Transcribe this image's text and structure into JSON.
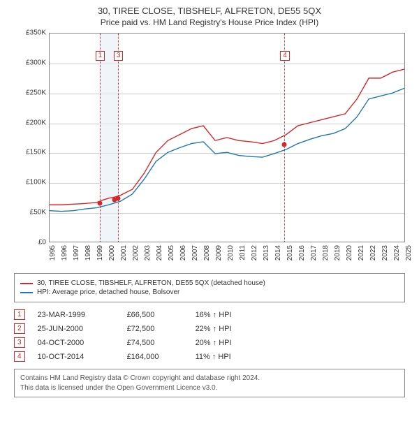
{
  "title": "30, TIREE CLOSE, TIBSHELF, ALFRETON, DE55 5QX",
  "subtitle": "Price paid vs. HM Land Registry's House Price Index (HPI)",
  "chart": {
    "type": "line",
    "background_color": "#ffffff",
    "grid_color": "#cccccc",
    "border_color": "#888888",
    "ylim": [
      0,
      350000
    ],
    "ytick_step": 50000,
    "y_ticks": [
      "£0",
      "£50K",
      "£100K",
      "£150K",
      "£200K",
      "£250K",
      "£300K",
      "£350K"
    ],
    "x_years": [
      1995,
      1996,
      1997,
      1998,
      1999,
      2000,
      2001,
      2002,
      2003,
      2004,
      2005,
      2006,
      2007,
      2008,
      2009,
      2010,
      2011,
      2012,
      2013,
      2014,
      2015,
      2016,
      2017,
      2018,
      2019,
      2020,
      2021,
      2022,
      2023,
      2024,
      2025
    ],
    "shaded_bands": [
      {
        "x_start": 1999.2,
        "x_end": 2000.8,
        "color": "#e6eef5"
      }
    ],
    "marker_lines": [
      {
        "x": 1999.22,
        "label": "1",
        "label_y": 25
      },
      {
        "x": 2000.76,
        "label": "3",
        "label_y": 25
      },
      {
        "x": 2014.78,
        "label": "4",
        "label_y": 25
      }
    ],
    "series": [
      {
        "name": "property",
        "label": "30, TIREE CLOSE, TIBSHELF, ALFRETON, DE55 5QX (detached house)",
        "color": "#d62728",
        "line_width": 1.4,
        "x": [
          1995,
          1996,
          1997,
          1998,
          1999,
          1999.5,
          2000,
          2000.5,
          2001,
          2002,
          2003,
          2004,
          2005,
          2006,
          2007,
          2008,
          2009,
          2010,
          2011,
          2012,
          2013,
          2014,
          2015,
          2016,
          2017,
          2018,
          2019,
          2020,
          2021,
          2022,
          2023,
          2024,
          2025
        ],
        "y": [
          62000,
          62000,
          63000,
          64000,
          66000,
          70000,
          73000,
          75000,
          78000,
          88000,
          115000,
          150000,
          170000,
          180000,
          190000,
          195000,
          170000,
          175000,
          170000,
          168000,
          165000,
          170000,
          180000,
          195000,
          200000,
          205000,
          210000,
          215000,
          240000,
          275000,
          275000,
          285000,
          290000
        ]
      },
      {
        "name": "hpi",
        "label": "HPI: Average price, detached house, Bolsover",
        "color": "#1f77b4",
        "line_width": 1.4,
        "x": [
          1995,
          1996,
          1997,
          1998,
          1999,
          2000,
          2001,
          2002,
          2003,
          2004,
          2005,
          2006,
          2007,
          2008,
          2009,
          2010,
          2011,
          2012,
          2013,
          2014,
          2015,
          2016,
          2017,
          2018,
          2019,
          2020,
          2021,
          2022,
          2023,
          2024,
          2025
        ],
        "y": [
          52000,
          51000,
          52000,
          55000,
          57000,
          62000,
          68000,
          80000,
          105000,
          135000,
          150000,
          158000,
          165000,
          168000,
          148000,
          150000,
          145000,
          143000,
          142000,
          148000,
          155000,
          165000,
          172000,
          178000,
          182000,
          190000,
          210000,
          240000,
          245000,
          250000,
          258000
        ]
      }
    ],
    "sale_markers": [
      {
        "num": "1",
        "x": 1999.22,
        "y": 66500
      },
      {
        "num": "2",
        "x": 2000.48,
        "y": 72500
      },
      {
        "num": "3",
        "x": 2000.76,
        "y": 74500
      },
      {
        "num": "4",
        "x": 2014.78,
        "y": 164000
      }
    ]
  },
  "legend": {
    "items": [
      {
        "color": "#d62728",
        "label": "30, TIREE CLOSE, TIBSHELF, ALFRETON, DE55 5QX (detached house)"
      },
      {
        "color": "#1f77b4",
        "label": "HPI: Average price, detached house, Bolsover"
      }
    ]
  },
  "sales": [
    {
      "num": "1",
      "date": "23-MAR-1999",
      "price": "£66,500",
      "pct": "16% ↑ HPI"
    },
    {
      "num": "2",
      "date": "25-JUN-2000",
      "price": "£72,500",
      "pct": "22% ↑ HPI"
    },
    {
      "num": "3",
      "date": "04-OCT-2000",
      "price": "£74,500",
      "pct": "20% ↑ HPI"
    },
    {
      "num": "4",
      "date": "10-OCT-2014",
      "price": "£164,000",
      "pct": "11% ↑ HPI"
    }
  ],
  "footer": {
    "line1": "Contains HM Land Registry data © Crown copyright and database right 2024.",
    "line2": "This data is licensed under the Open Government Licence v3.0."
  }
}
